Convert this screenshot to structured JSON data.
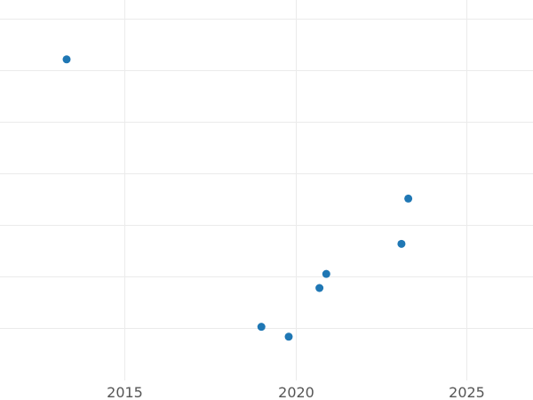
{
  "chart_data": {
    "type": "scatter",
    "title": "",
    "xlabel": "",
    "ylabel": "",
    "xlim": [
      2011.35,
      2026.95
    ],
    "x_ticks": [
      2015,
      2020,
      2025
    ],
    "x_tick_labels": [
      "2015",
      "2020",
      "2025"
    ],
    "y_gridlines": 7,
    "grid": true,
    "series": [
      {
        "color": "#1f77b4",
        "points": [
          {
            "x": 2013.3,
            "y": 0.844
          },
          {
            "x": 2023.3,
            "y": 0.478
          },
          {
            "x": 2023.1,
            "y": 0.359
          },
          {
            "x": 2020.9,
            "y": 0.28
          },
          {
            "x": 2020.7,
            "y": 0.243
          },
          {
            "x": 2019.0,
            "y": 0.141
          },
          {
            "x": 2019.8,
            "y": 0.115
          }
        ]
      }
    ]
  }
}
